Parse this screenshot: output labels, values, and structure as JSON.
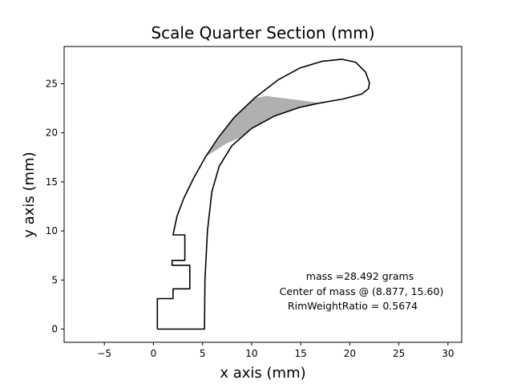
{
  "chart_data": {
    "type": "line",
    "title": "Scale Quarter Section (mm)",
    "xlabel": "x axis (mm)",
    "ylabel": "y axis (mm)",
    "xlim": [
      -9.1,
      31.4
    ],
    "ylim": [
      -1.35,
      28.8
    ],
    "xticks": [
      -5,
      0,
      5,
      10,
      15,
      20,
      25,
      30
    ],
    "yticks": [
      0,
      5,
      10,
      15,
      20,
      25
    ],
    "grid": false,
    "series": [
      {
        "role": "outline",
        "color": "#000000",
        "points": [
          [
            0.4,
            0.0
          ],
          [
            5.2,
            0.0
          ],
          [
            5.25,
            5.0
          ],
          [
            5.5,
            10.0
          ],
          [
            5.95,
            14.0
          ],
          [
            6.7,
            16.6
          ],
          [
            8.0,
            18.7
          ],
          [
            10.0,
            20.45
          ],
          [
            12.3,
            21.7
          ],
          [
            14.9,
            22.6
          ],
          [
            17.0,
            23.05
          ],
          [
            19.3,
            23.45
          ],
          [
            21.2,
            23.95
          ],
          [
            21.9,
            24.5
          ],
          [
            22.0,
            25.1
          ],
          [
            21.6,
            26.2
          ],
          [
            20.6,
            27.2
          ],
          [
            19.2,
            27.5
          ],
          [
            17.2,
            27.3
          ],
          [
            14.9,
            26.6
          ],
          [
            12.7,
            25.4
          ],
          [
            10.3,
            23.55
          ],
          [
            8.2,
            21.55
          ],
          [
            6.6,
            19.5
          ],
          [
            5.3,
            17.55
          ],
          [
            4.1,
            15.4
          ],
          [
            3.1,
            13.35
          ],
          [
            2.4,
            11.5
          ],
          [
            2.0,
            9.6
          ],
          [
            3.2,
            9.6
          ],
          [
            3.2,
            7.0
          ],
          [
            1.9,
            7.0
          ],
          [
            1.9,
            6.5
          ],
          [
            3.7,
            6.5
          ],
          [
            3.7,
            4.1
          ],
          [
            2.0,
            4.1
          ],
          [
            2.0,
            3.1
          ],
          [
            0.4,
            3.1
          ],
          [
            0.4,
            0.0
          ]
        ]
      }
    ],
    "shaded_region": {
      "color": "#b0b0b0",
      "points": [
        [
          5.3,
          17.55
        ],
        [
          8.2,
          21.55
        ],
        [
          10.3,
          23.55
        ],
        [
          11.5,
          23.75
        ],
        [
          17.0,
          23.05
        ],
        [
          14.9,
          22.6
        ],
        [
          12.3,
          21.7
        ],
        [
          10.0,
          20.45
        ],
        [
          8.8,
          19.5
        ],
        [
          7.4,
          18.9
        ]
      ]
    },
    "annotations": [
      "mass =28.492 grams",
      "Center of mass @ (8.877, 15.60)",
      "RimWeightRatio = 0.5674"
    ]
  }
}
